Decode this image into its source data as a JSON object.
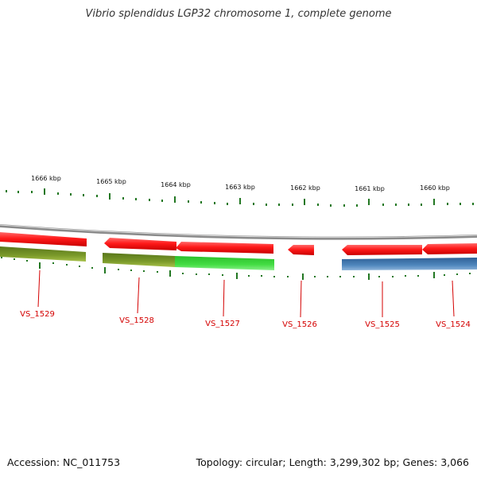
{
  "header": {
    "title": "Vibrio splendidus LGP32 chromosome 1, complete genome"
  },
  "footer": {
    "accession": "Accession: NC_011753",
    "topology": "Topology: circular; Length: 3,299,302 bp; Genes: 3,066"
  },
  "colors": {
    "background": "#ffffff",
    "backbone": "#888888",
    "tick": "#227722",
    "cds_forward": "#ff1a1a",
    "gene_label": "#d40000",
    "track_olive": "#6e8b1f",
    "track_green": "#33cc33",
    "track_blue": "#4a7fb5"
  },
  "scale": {
    "labels": [
      "1666 kbp",
      "1665 kbp",
      "1664 kbp",
      "1663 kbp",
      "1662 kbp",
      "1661 kbp",
      "1660 kbp"
    ]
  },
  "genes": [
    "VS_1529",
    "VS_1528",
    "VS_1527",
    "VS_1526",
    "VS_1525",
    "VS_1524"
  ]
}
